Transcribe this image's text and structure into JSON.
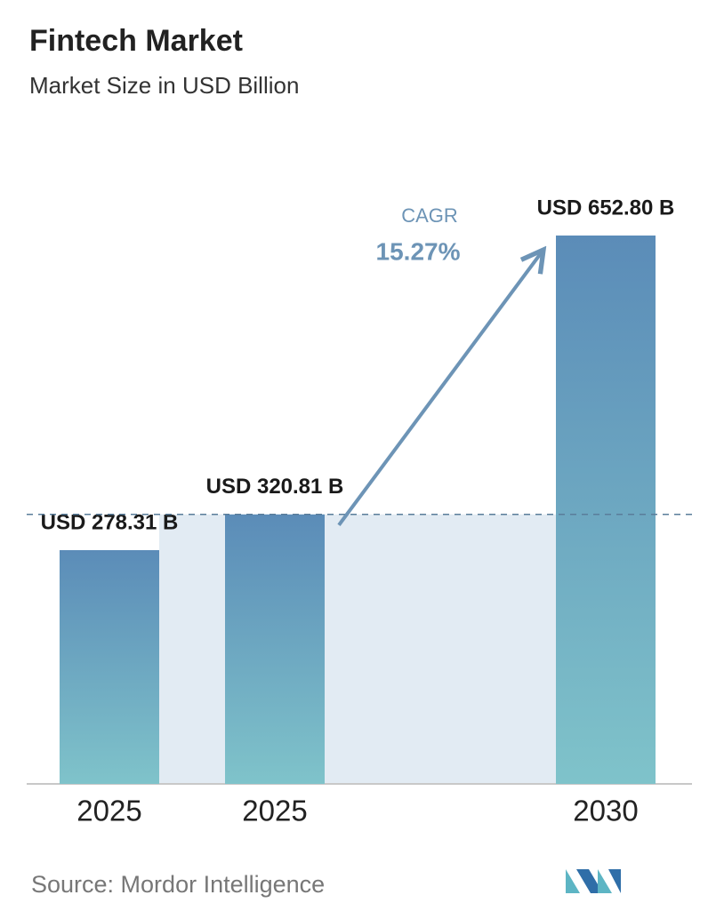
{
  "chart_data": {
    "type": "bar",
    "title": "Fintech Market",
    "subtitle": "Market Size in USD Billion",
    "categories": [
      "2025",
      "2025",
      null,
      "2030"
    ],
    "values": [
      278.31,
      320.81,
      null,
      652.8
    ],
    "value_labels": [
      "USD 278.31 B",
      "USD 320.81 B",
      null,
      "USD 652.80 B"
    ],
    "annotation": {
      "label": "CAGR",
      "value": "15.27%"
    },
    "source": "Source: Mordor Intelligence",
    "colors": {
      "bar_top": "#5b8cb8",
      "bar_bottom": "#7fc3ca",
      "shade": "#e2ebf3",
      "arrow": "#6d94b6"
    }
  }
}
